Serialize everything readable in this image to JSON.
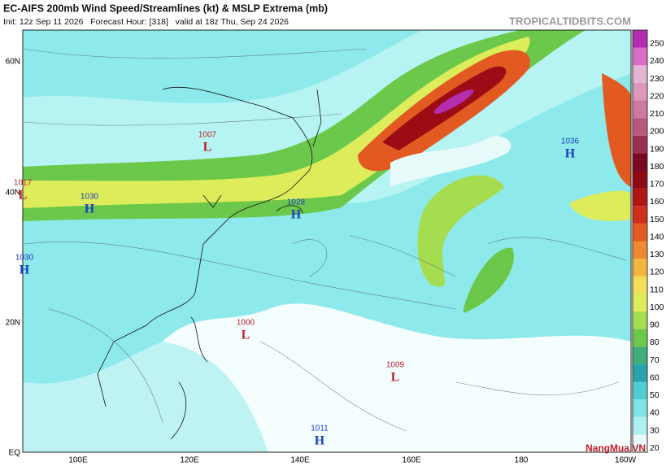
{
  "header": {
    "title": "EC-AIFS 200mb Wind Speed/Streamlines (kt) & MSLP Extrema (mb)",
    "subtitle": "Init: 12z Sep 11 2026   Forecast Hour: [318]   valid at 18z Thu, Sep 24 2026",
    "site": "TROPICALTIDBITS.COM"
  },
  "map": {
    "lat_labels": [
      "60N",
      "40N",
      "20N",
      "EQ"
    ],
    "lon_labels": [
      "100E",
      "120E",
      "140E",
      "160E",
      "180",
      "160W"
    ],
    "center_colors": {
      "H": "#1d3dbf",
      "L": "#c41e2a"
    },
    "centers": [
      {
        "value": 1007,
        "type": "L"
      },
      {
        "value": 1017,
        "type": "L"
      },
      {
        "value": 1030,
        "type": "H"
      },
      {
        "value": 1030,
        "type": "H"
      },
      {
        "value": 1028,
        "type": "H"
      },
      {
        "value": 1036,
        "type": "H"
      },
      {
        "value": 1000,
        "type": "L"
      },
      {
        "value": 1009,
        "type": "L"
      },
      {
        "value": 1011,
        "type": "H"
      }
    ]
  },
  "colorbar": {
    "levels": [
      20,
      30,
      40,
      50,
      60,
      70,
      80,
      90,
      100,
      110,
      120,
      130,
      140,
      150,
      160,
      170,
      180,
      190,
      200,
      210,
      220,
      230,
      240,
      250
    ],
    "colors": [
      "#e8fbfb",
      "#aef0f0",
      "#7ee4e6",
      "#4fcdd2",
      "#2aa3ad",
      "#3fae7a",
      "#6cc84a",
      "#a6dc50",
      "#dcec5a",
      "#f2de58",
      "#f2b640",
      "#ee8a30",
      "#e25a22",
      "#cf2e1c",
      "#b01414",
      "#8c0a14",
      "#7a0a22",
      "#9a3050",
      "#b8587c",
      "#cc7aa0",
      "#dc98bc",
      "#e4b4d2",
      "#d86cc8",
      "#b42cb0"
    ]
  },
  "watermark": "NangMua.VN"
}
